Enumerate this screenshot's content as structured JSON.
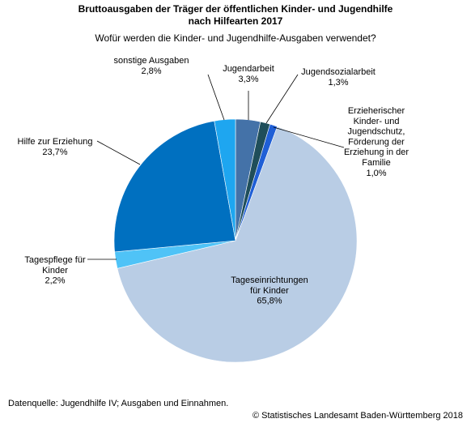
{
  "chart_data": {
    "type": "pie",
    "title_line1": "Bruttoausgaben der Träger der öffentlichen Kinder- und Jugendhilfe",
    "title_line2": "nach Hilfearten 2017",
    "subtitle": "Wofür werden die Kinder- und Jugendhilfe-Ausgaben verwendet?",
    "start_angle_deg": 0,
    "slices": [
      {
        "label_lines": [
          "Jugendarbeit",
          "3,3%"
        ],
        "value": 3.3,
        "color": "#4472A8"
      },
      {
        "label_lines": [
          "Jugendsozialarbeit",
          "1,3%"
        ],
        "value": 1.3,
        "color": "#1F4E5A"
      },
      {
        "label_lines": [
          "Erzieherischer",
          "Kinder- und",
          "Jugendschutz,",
          "Förderung der",
          "Erziehung in der",
          "Familie",
          "1,0%"
        ],
        "value": 1.0,
        "color": "#1F5FD6"
      },
      {
        "label_lines": [
          "Tageseinrichtungen",
          "für Kinder",
          "65,8%"
        ],
        "value": 65.8,
        "color": "#B9CDE5"
      },
      {
        "label_lines": [
          "Tagespflege für",
          "Kinder",
          "2,2%"
        ],
        "value": 2.2,
        "color": "#4FC3F7"
      },
      {
        "label_lines": [
          "Hilfe zur Erziehung",
          "23,7%"
        ],
        "value": 23.7,
        "color": "#0070C0"
      },
      {
        "label_lines": [
          "sonstige Ausgaben",
          "2,8%"
        ],
        "value": 2.8,
        "color": "#1EA6F0"
      }
    ]
  },
  "footer": {
    "source": "Datenquelle: Jugendhilfe IV; Ausgaben und Einnahmen.",
    "copyright": "© Statistisches Landesamt Baden-Württemberg 2018"
  }
}
